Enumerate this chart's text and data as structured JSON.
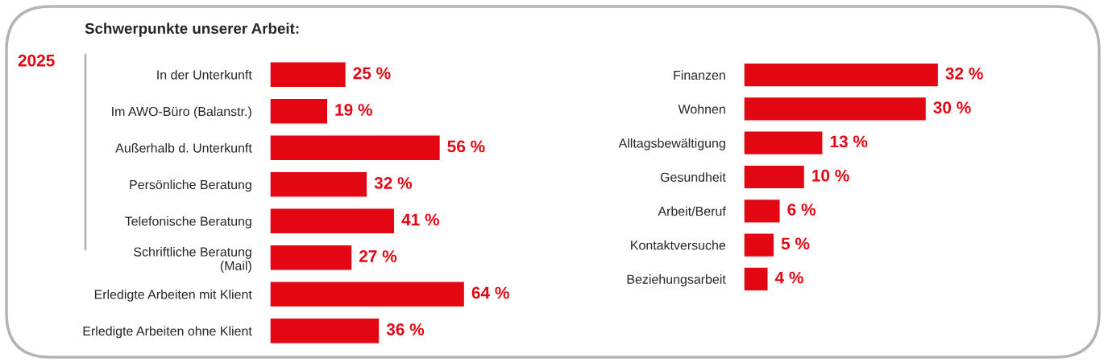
{
  "chart_data": [
    {
      "type": "bar",
      "orientation": "horizontal",
      "title": "Schwerpunkte unserer Arbeit:",
      "annotations": [
        "2025"
      ],
      "categories": [
        "In der Unterkunft",
        "Im AWO-Büro (Balanstr.)",
        "Außerhalb d. Unterkunft",
        "Persönliche Beratung",
        "Telefonische Beratung",
        "Schriftliche Beratung\n(Mail)",
        "Erledigte Arbeiten mit Klient",
        "Erledigte Arbeiten ohne Klient"
      ],
      "values": [
        25,
        19,
        56,
        32,
        41,
        27,
        64,
        36
      ],
      "value_labels": [
        "25 %",
        "19 %",
        "56 %",
        "32 %",
        "41 %",
        "27 %",
        "64 %",
        "36 %"
      ],
      "color": "#e30613",
      "grid": false,
      "legend": false
    },
    {
      "type": "bar",
      "orientation": "horizontal",
      "categories": [
        "Finanzen",
        "Wohnen",
        "Alltagsbewältigung",
        "Gesundheit",
        "Arbeit/Beruf",
        "Kontaktversuche",
        "Beziehungsarbeit"
      ],
      "values": [
        32,
        30,
        13,
        10,
        6,
        5,
        4
      ],
      "value_labels": [
        "32 %",
        "30 %",
        "13 %",
        "10 %",
        "6 %",
        "5 %",
        "4 %"
      ],
      "color": "#e30613",
      "grid": false,
      "legend": false
    }
  ]
}
